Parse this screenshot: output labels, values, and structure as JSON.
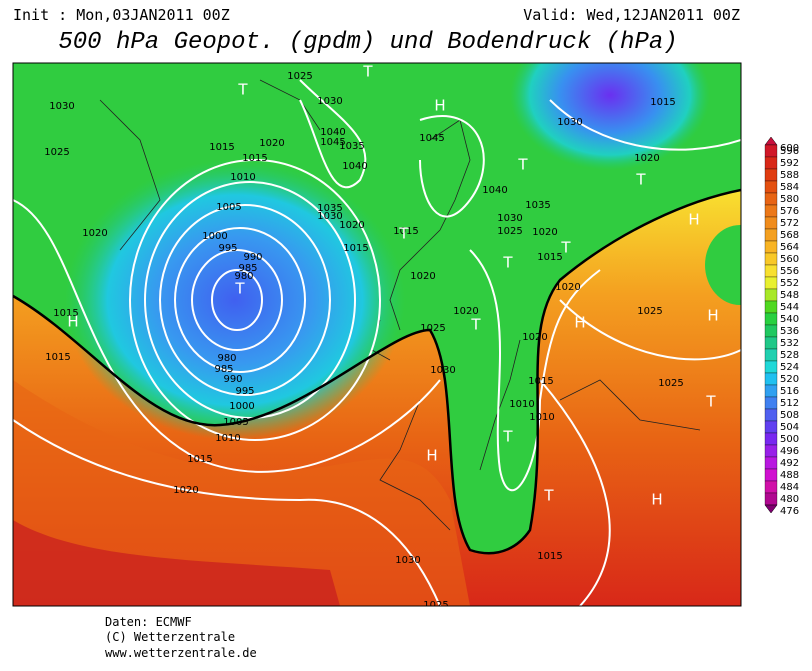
{
  "header": {
    "init": "Init : Mon,03JAN2011 00Z",
    "valid": "Valid: Wed,12JAN2011 00Z",
    "title": "500 hPa Geopot. (gpdm) und Bodendruck (hPa)"
  },
  "colorbar": {
    "levels": [
      600,
      596,
      592,
      588,
      584,
      580,
      576,
      572,
      568,
      564,
      560,
      556,
      552,
      548,
      544,
      540,
      536,
      532,
      528,
      524,
      520,
      516,
      512,
      508,
      504,
      500,
      496,
      492,
      488,
      484,
      480,
      476
    ],
    "colors": [
      "#c8103c",
      "#d01828",
      "#d82818",
      "#e03c10",
      "#e45010",
      "#e86414",
      "#ec7818",
      "#f08c1c",
      "#f4a020",
      "#f8b424",
      "#f8c828",
      "#f8e030",
      "#e8f030",
      "#a8e828",
      "#50d820",
      "#28d040",
      "#20c860",
      "#20c888",
      "#20d0b0",
      "#20d8d8",
      "#20c0f0",
      "#30a0f0",
      "#4080f0",
      "#5060f0",
      "#6040f0",
      "#7828f0",
      "#9820e8",
      "#b818e0",
      "#d010d0",
      "#d010a8",
      "#b00890",
      "#800070"
    ]
  },
  "map": {
    "isobar_labels": [
      1030,
      1025,
      1020,
      1015,
      1015,
      1025,
      1030,
      1015,
      1020,
      1015,
      1010,
      1005,
      1000,
      995,
      990,
      985,
      980,
      1040,
      1045,
      1035,
      1040,
      1035,
      1030,
      1020,
      1015,
      1015,
      1045,
      1040,
      1035,
      1030,
      1025,
      1020,
      1015,
      1020,
      1020,
      1025,
      1020,
      1020,
      1030,
      1015,
      1020,
      1025,
      1025,
      1015,
      1010,
      1010,
      1030,
      980,
      985,
      990,
      995,
      1000,
      1005,
      1010,
      1015,
      1020,
      1030,
      1025,
      1015,
      1025
    ],
    "pressure_centers": [
      "T",
      "T",
      "H",
      "T",
      "T",
      "H",
      "T",
      "T",
      "T",
      "T",
      "T",
      "H",
      "H",
      "H",
      "T",
      "H",
      "T",
      "T",
      "H"
    ]
  },
  "footer": {
    "source": "Daten: ECMWF",
    "copyright": "(C) Wetterzentrale",
    "url": "www.wetterzentrale.de"
  }
}
